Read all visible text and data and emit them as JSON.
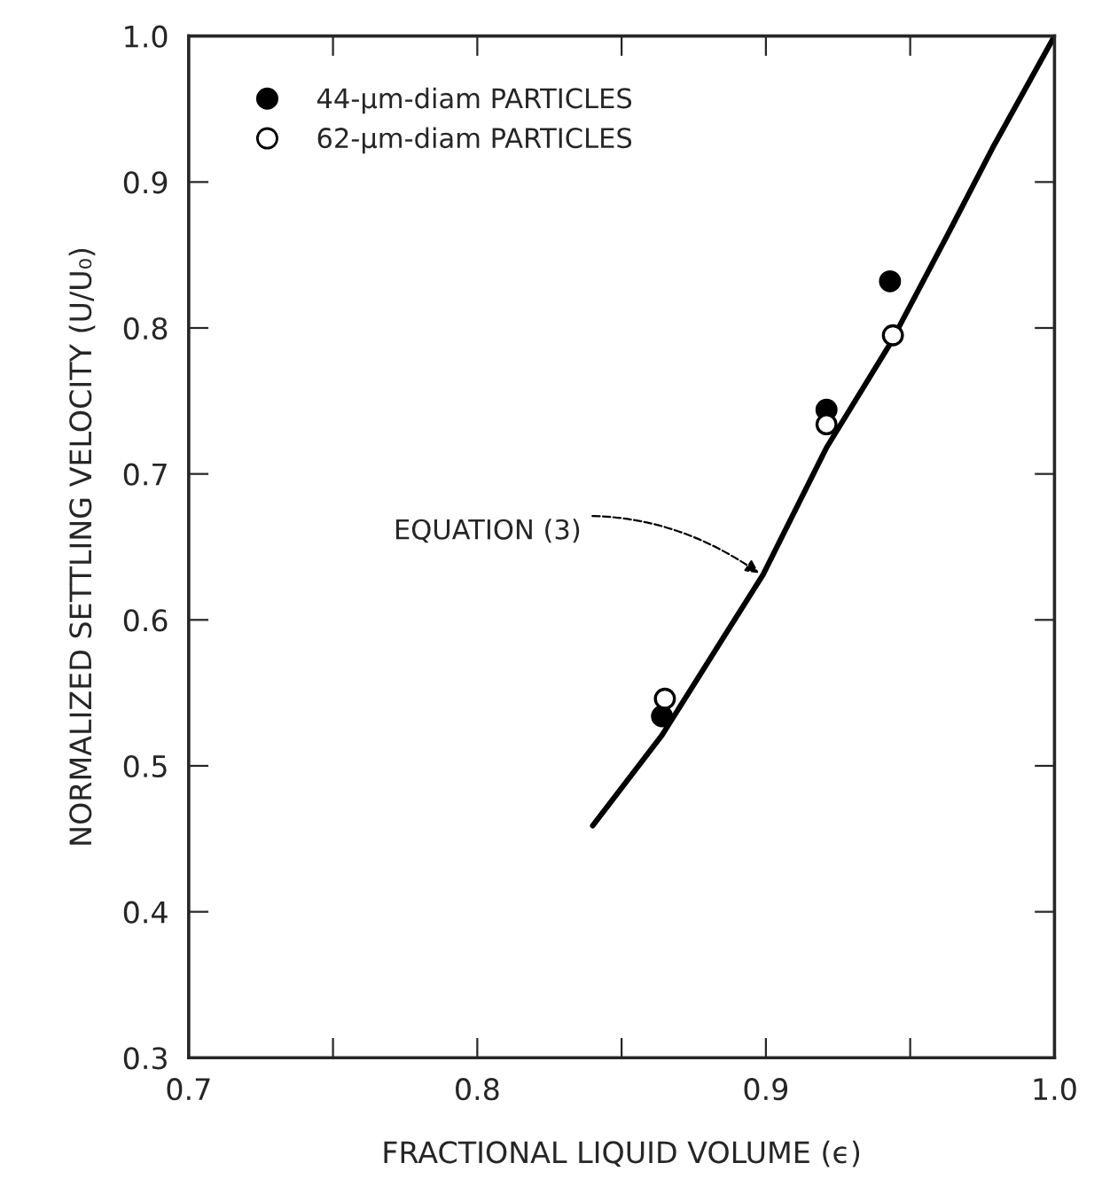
{
  "chart_data": {
    "type": "scatter",
    "xlabel": "FRACTIONAL LIQUID VOLUME (ϵ)",
    "ylabel": "NORMALIZED SETTLING VELOCITY (U/U₀)",
    "xlim": [
      0.7,
      1.0
    ],
    "ylim": [
      0.3,
      1.0
    ],
    "xticks": [
      0.7,
      {
        "value": 0.75,
        "label": null
      },
      0.8,
      {
        "value": 0.85,
        "label": null
      },
      0.9,
      {
        "value": 0.95,
        "label": null
      },
      {
        "value": 1.0,
        "label": "1.0"
      }
    ],
    "yticks": [
      0.3,
      0.4,
      0.5,
      0.6,
      0.7,
      0.8,
      0.9,
      {
        "value": 1.0,
        "label": "1.0"
      }
    ],
    "grid": false,
    "legend": "top left",
    "marker": "circle",
    "annotations": [
      {
        "text": "EQUATION (3)",
        "x": 0.899,
        "y": 0.63
      }
    ],
    "series": [
      {
        "name": "44-μm-diam PARTICLES",
        "color": "#000000",
        "x": [
          0.864,
          0.921,
          0.943
        ],
        "values": [
          0.534,
          0.744,
          0.832
        ]
      },
      {
        "name": "62-μm-diam PARTICLES",
        "color": "#ffffff",
        "x": [
          0.865,
          0.921,
          0.944
        ],
        "values": [
          0.546,
          0.734,
          0.795
        ]
      },
      {
        "type": "line",
        "color": "#000000",
        "line_style": "solid",
        "marker": "none",
        "x": [
          0.84,
          0.864,
          0.885,
          0.899,
          0.921,
          0.943,
          0.963,
          0.979,
          1.0
        ],
        "values": [
          0.459,
          0.521,
          0.587,
          0.631,
          0.718,
          0.789,
          0.864,
          0.925,
          1.0
        ]
      }
    ]
  }
}
